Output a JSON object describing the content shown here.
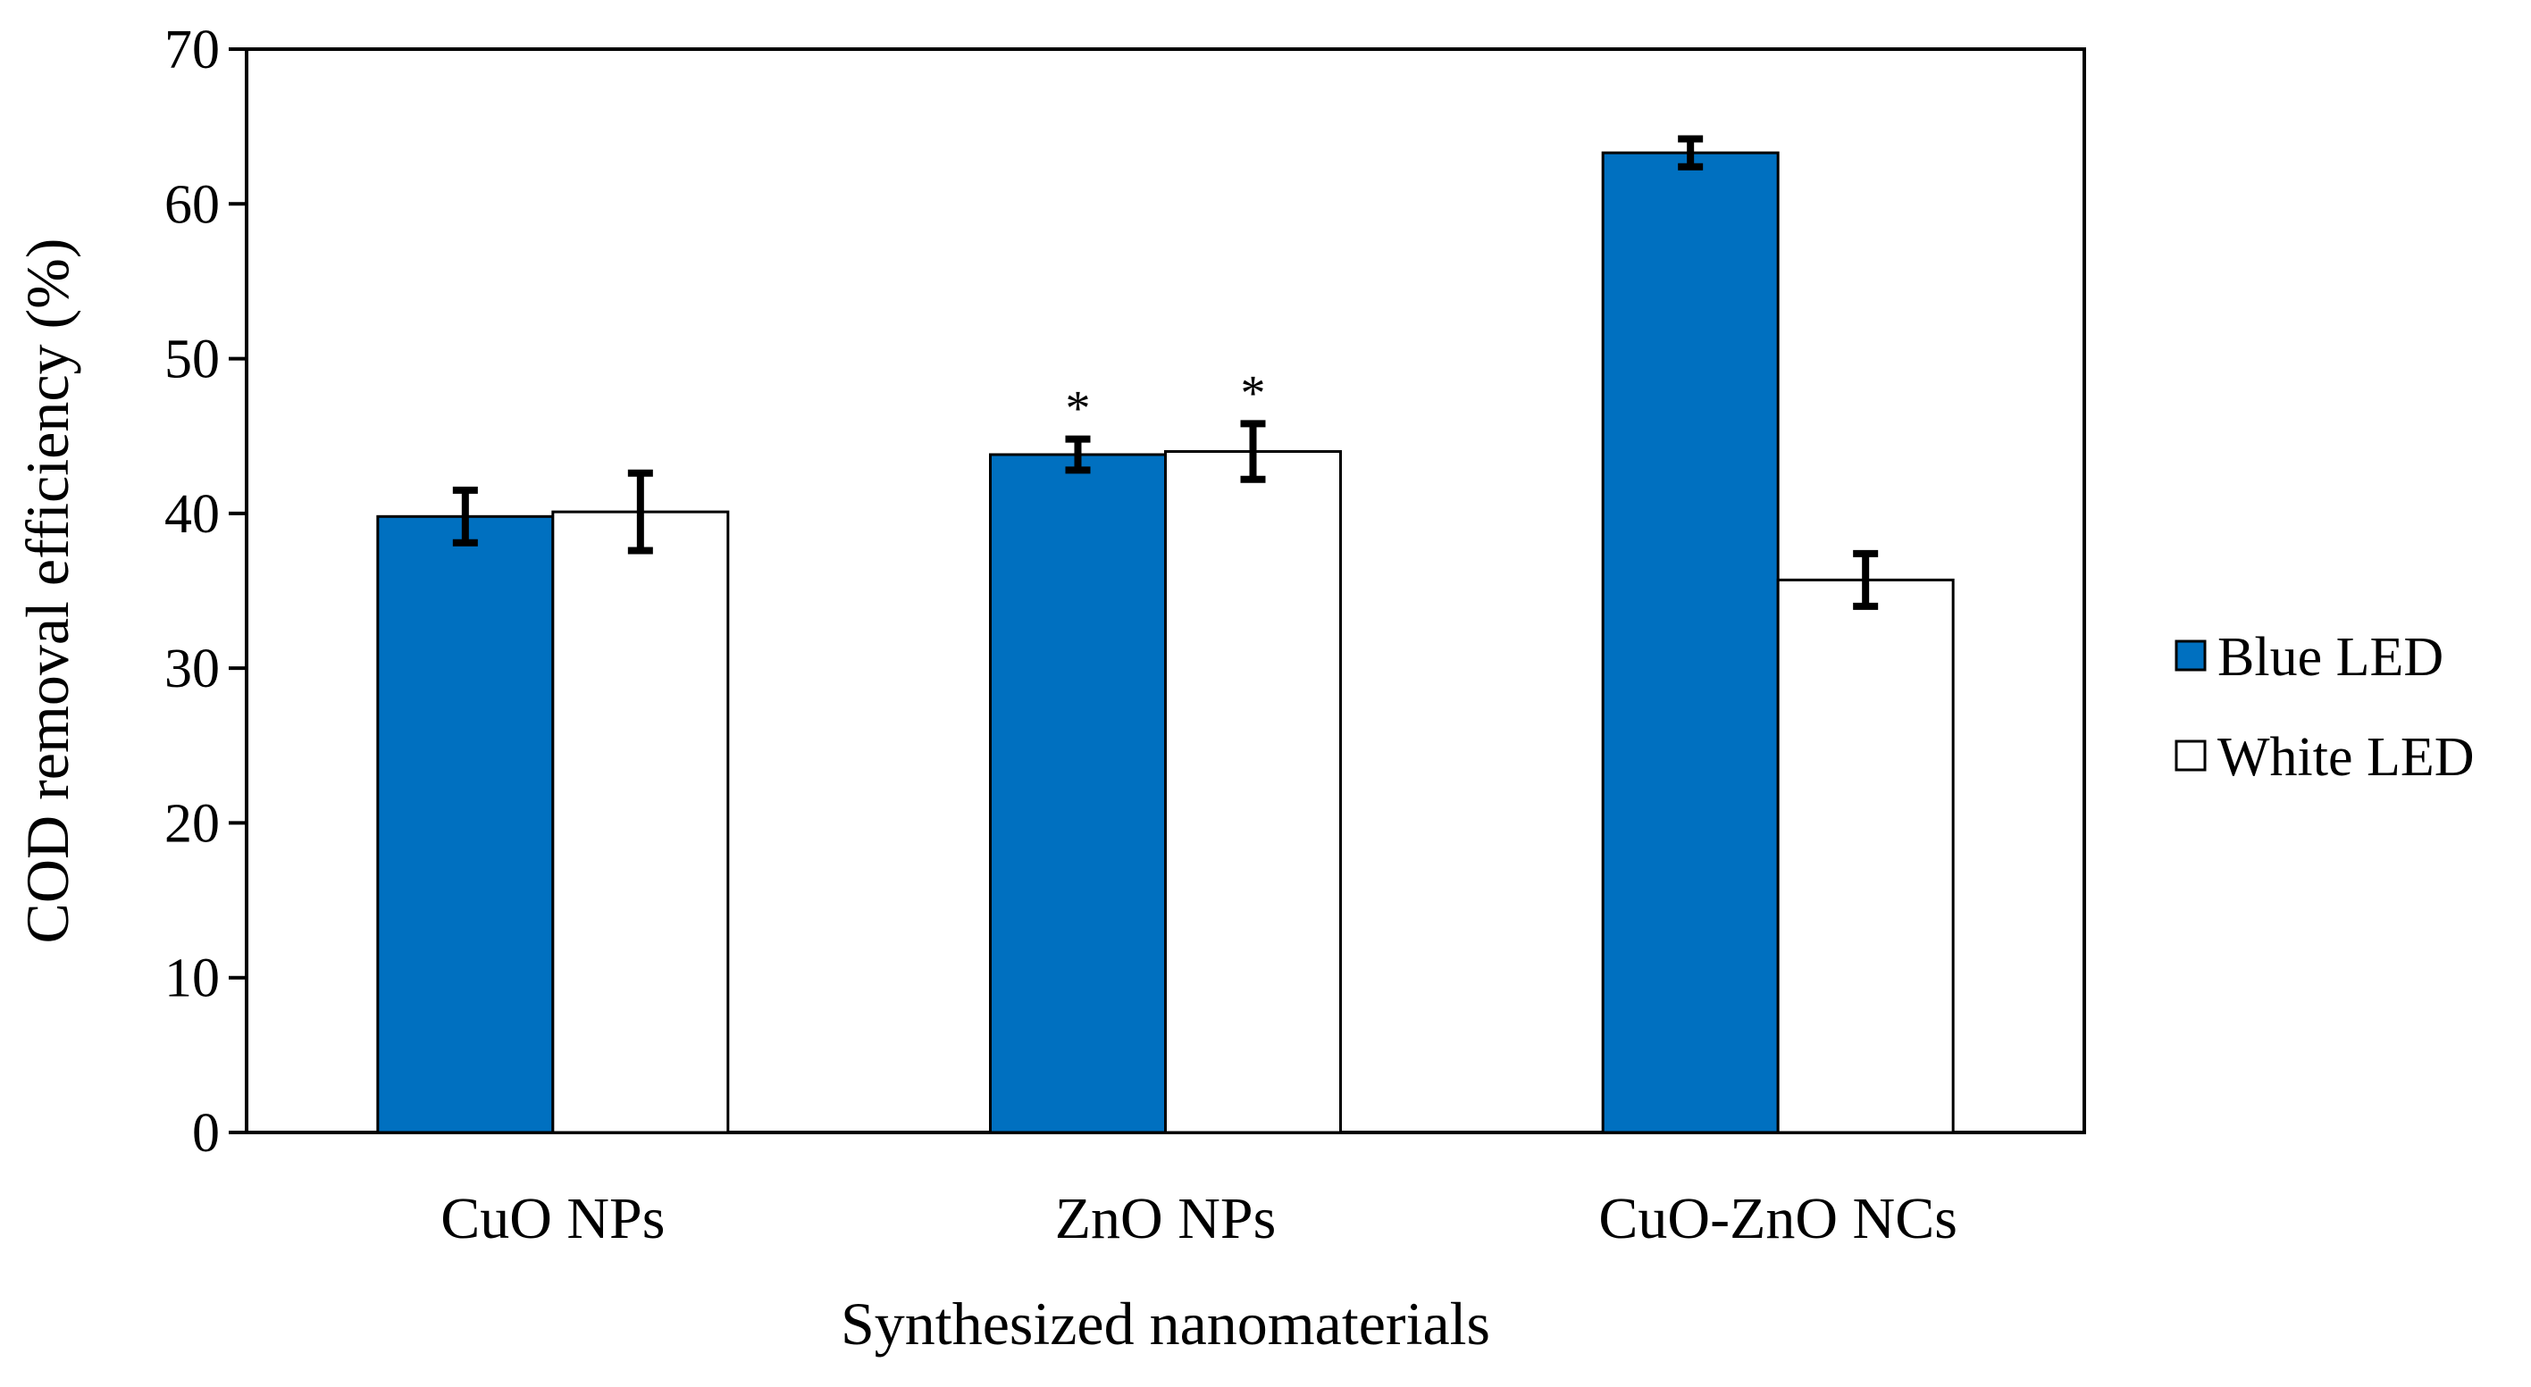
{
  "chart_data": {
    "type": "bar",
    "title": "",
    "xlabel": "Synthesized nanomaterials",
    "ylabel": "COD removal efficiency (%)",
    "ylim": [
      0,
      70
    ],
    "yticks": [
      0,
      10,
      20,
      30,
      40,
      50,
      60,
      70
    ],
    "categories": [
      "CuO NPs",
      "ZnO NPs",
      "CuO-ZnO NCs"
    ],
    "series": [
      {
        "name": "Blue LED",
        "color": "#0070C0",
        "values": [
          39.8,
          43.8,
          63.3
        ],
        "errors": [
          1.7,
          1.0,
          0.9
        ],
        "annotations": [
          "",
          "*",
          ""
        ]
      },
      {
        "name": "White LED",
        "color": "#FFFFFF",
        "values": [
          40.1,
          44.0,
          35.7
        ],
        "errors": [
          2.5,
          1.8,
          1.7
        ],
        "annotations": [
          "",
          "*",
          ""
        ]
      }
    ],
    "legend_position": "right",
    "grid": false
  }
}
